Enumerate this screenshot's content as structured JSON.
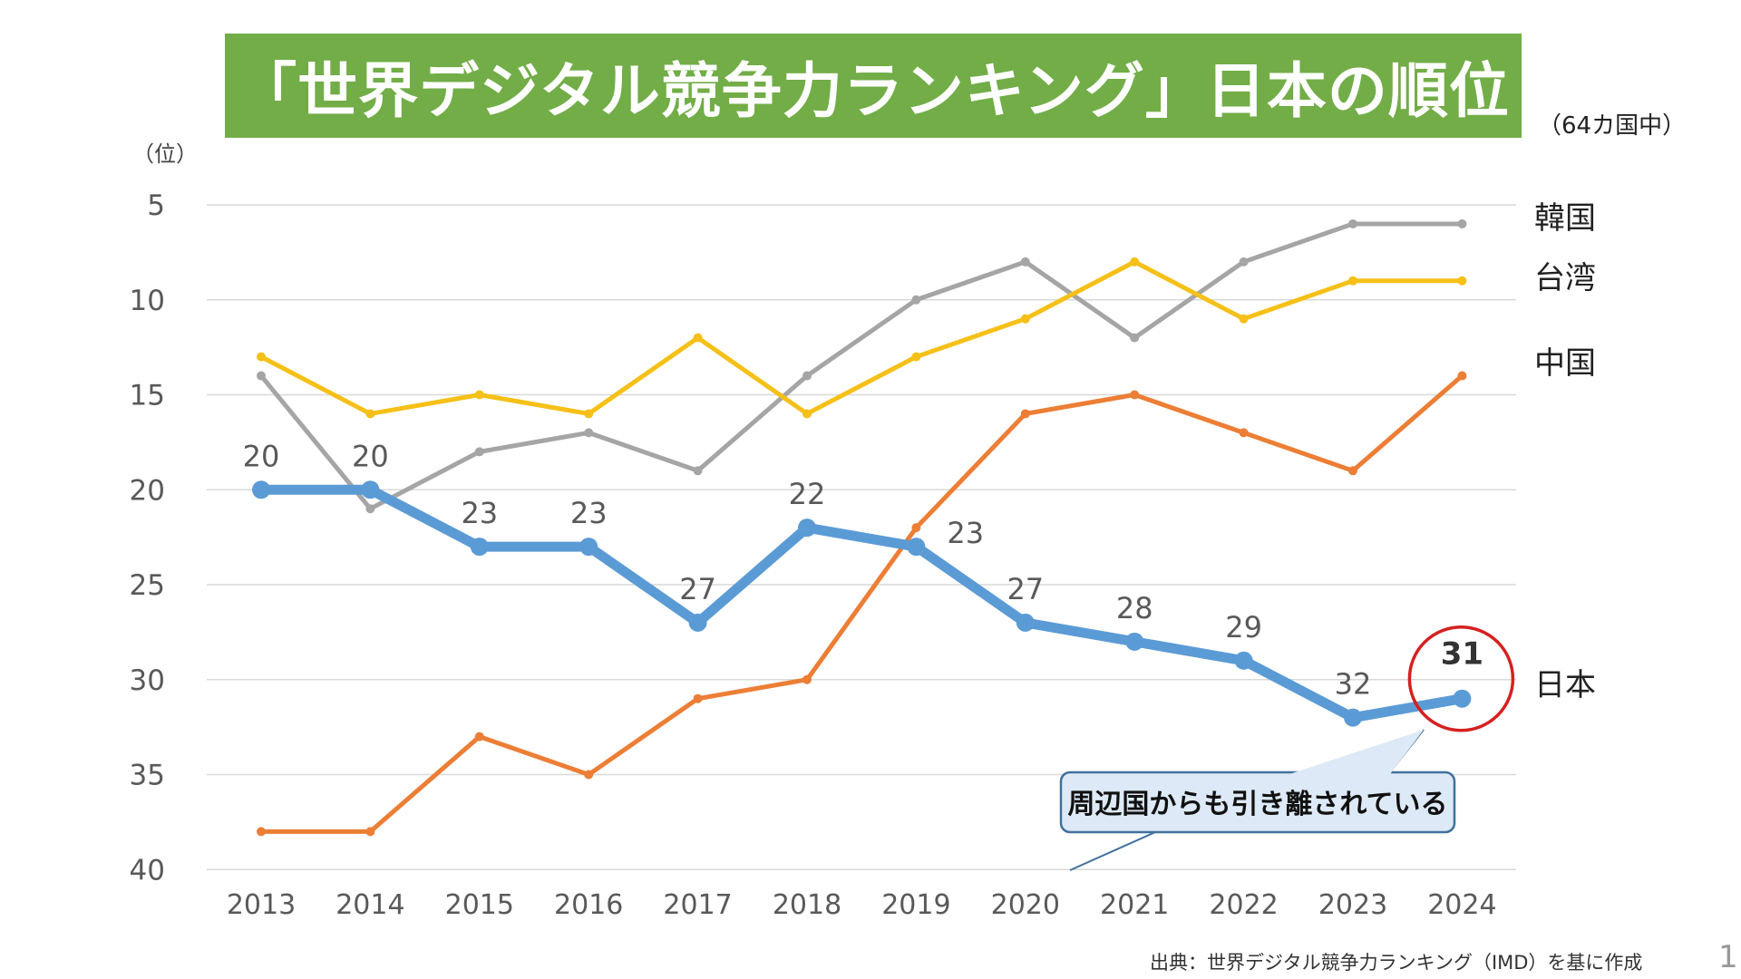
{
  "title": "「世界デジタル競争力ランキング」日本の順位",
  "subtitle": "（64カ国中）",
  "source": "出典：世界デジタル競争力ランキング（IMD）を基に作成",
  "page_number": "1",
  "chart_data": {
    "type": "line",
    "ylabel": "（位）",
    "ylim": [
      40,
      5
    ],
    "y_inverted": true,
    "yticks": [
      "5",
      "10",
      "15",
      "20",
      "25",
      "30",
      "35",
      "40"
    ],
    "ytick_values": [
      5,
      10,
      15,
      20,
      25,
      30,
      35,
      40
    ],
    "x": [
      "2013",
      "2014",
      "2015",
      "2016",
      "2017",
      "2018",
      "2019",
      "2020",
      "2021",
      "2022",
      "2023",
      "2024"
    ],
    "grid": true,
    "legend": "right-end labels",
    "series": [
      {
        "name": "韓国",
        "color": "#a5a5a5",
        "values": [
          14,
          21,
          18,
          17,
          19,
          14,
          10,
          8,
          12,
          8,
          6,
          6
        ]
      },
      {
        "name": "台湾",
        "color": "#f5c018",
        "values": [
          13,
          16,
          15,
          16,
          12,
          16,
          13,
          11,
          8,
          11,
          9,
          9
        ]
      },
      {
        "name": "中国",
        "color": "#ec7e35",
        "values": [
          38,
          38,
          33,
          35,
          31,
          30,
          22,
          16,
          15,
          17,
          19,
          14
        ]
      },
      {
        "name": "日本",
        "color": "#5b9bd5",
        "values": [
          20,
          20,
          23,
          23,
          27,
          22,
          23,
          27,
          28,
          29,
          32,
          31
        ],
        "data_labels": [
          "20",
          "20",
          "23",
          "23",
          "27",
          "22",
          "23",
          "27",
          "28",
          "29",
          "32",
          "31"
        ]
      }
    ],
    "annotation": {
      "text": "周辺国からも引き離されている",
      "target": "2024",
      "highlight_color": "#d62020"
    }
  }
}
